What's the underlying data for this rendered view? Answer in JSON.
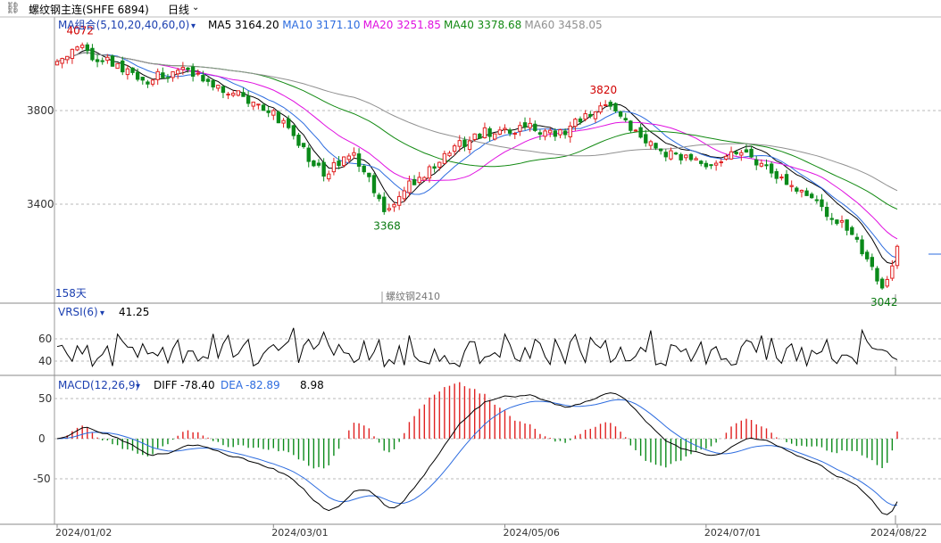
{
  "header": {
    "title": "螺纹钢主连(SHFE 6894)",
    "period": "日线",
    "link_icon": "link-icon",
    "dropdown_icon": "chevron-down-icon"
  },
  "colors": {
    "up": "#e02020",
    "down": "#0b8a1a",
    "ma5": "#000000",
    "ma10": "#2d6cdf",
    "ma20": "#e010e0",
    "ma40": "#138a13",
    "ma60": "#909090",
    "text_blue": "#1b3fb0",
    "grid": "#b8b8b8"
  },
  "main_panel": {
    "indicator_label": "MA组合(5,10,20,40,60,0)",
    "ma_labels": [
      {
        "name": "MA5",
        "value": "3164.20"
      },
      {
        "name": "MA10",
        "value": "3171.10"
      },
      {
        "name": "MA20",
        "value": "3251.85"
      },
      {
        "name": "MA40",
        "value": "3378.68"
      },
      {
        "name": "MA60",
        "value": "3458.05"
      }
    ],
    "days_label": "158天",
    "contract_label": "螺纹钢2410",
    "y_ticks": [
      3800,
      3400
    ],
    "annotations": [
      {
        "text": "4072",
        "kind": "high"
      },
      {
        "text": "3368",
        "kind": "low"
      },
      {
        "text": "3820",
        "kind": "high"
      },
      {
        "text": "3042",
        "kind": "low"
      }
    ]
  },
  "vrsi_panel": {
    "indicator_label": "VRSI(6)",
    "value": "41.25",
    "y_ticks": [
      60,
      40
    ]
  },
  "macd_panel": {
    "indicator_label": "MACD(12,26,9)",
    "diff_label": "DIFF",
    "diff_value": "-78.40",
    "dea_label": "DEA",
    "dea_value": "-82.89",
    "macd_value": "8.98",
    "y_ticks": [
      50,
      0,
      -50
    ]
  },
  "x_axis": {
    "dates": [
      "2024/01/02",
      "2024/03/01",
      "2024/05/06",
      "2024/07/01",
      "2024/08/22"
    ]
  },
  "chart_data": {
    "type": "candlestick",
    "title": "螺纹钢主连(SHFE 6894) 日线",
    "x_start": "2024/01/02",
    "x_end": "2024/08/22",
    "ylim": [
      3020,
      4120
    ],
    "price_key_points": [
      {
        "date": "2024/01/02",
        "close": 4010
      },
      {
        "date": "2024/01/08",
        "close": 4072
      },
      {
        "date": "2024/01/25",
        "close": 3930
      },
      {
        "date": "2024/02/07",
        "close": 3975
      },
      {
        "date": "2024/02/22",
        "close": 3860
      },
      {
        "date": "2024/03/01",
        "close": 3800
      },
      {
        "date": "2024/03/15",
        "close": 3520
      },
      {
        "date": "2024/03/25",
        "close": 3620
      },
      {
        "date": "2024/04/02",
        "close": 3368
      },
      {
        "date": "2024/04/15",
        "close": 3560
      },
      {
        "date": "2024/04/26",
        "close": 3700
      },
      {
        "date": "2024/05/10",
        "close": 3730
      },
      {
        "date": "2024/05/20",
        "close": 3690
      },
      {
        "date": "2024/05/31",
        "close": 3820
      },
      {
        "date": "2024/06/07",
        "close": 3760
      },
      {
        "date": "2024/06/17",
        "close": 3640
      },
      {
        "date": "2024/07/01",
        "close": 3560
      },
      {
        "date": "2024/07/10",
        "close": 3620
      },
      {
        "date": "2024/07/19",
        "close": 3510
      },
      {
        "date": "2024/08/01",
        "close": 3390
      },
      {
        "date": "2024/08/12",
        "close": 3250
      },
      {
        "date": "2024/08/19",
        "close": 3042
      },
      {
        "date": "2024/08/22",
        "close": 3220
      }
    ],
    "ma_last": {
      "MA5": 3164.2,
      "MA10": 3171.1,
      "MA20": 3251.85,
      "MA40": 3378.68,
      "MA60": 3458.05
    },
    "vrsi_last": 41.25,
    "macd_last": {
      "DIFF": -78.4,
      "DEA": -82.89,
      "MACD": 8.98
    }
  }
}
